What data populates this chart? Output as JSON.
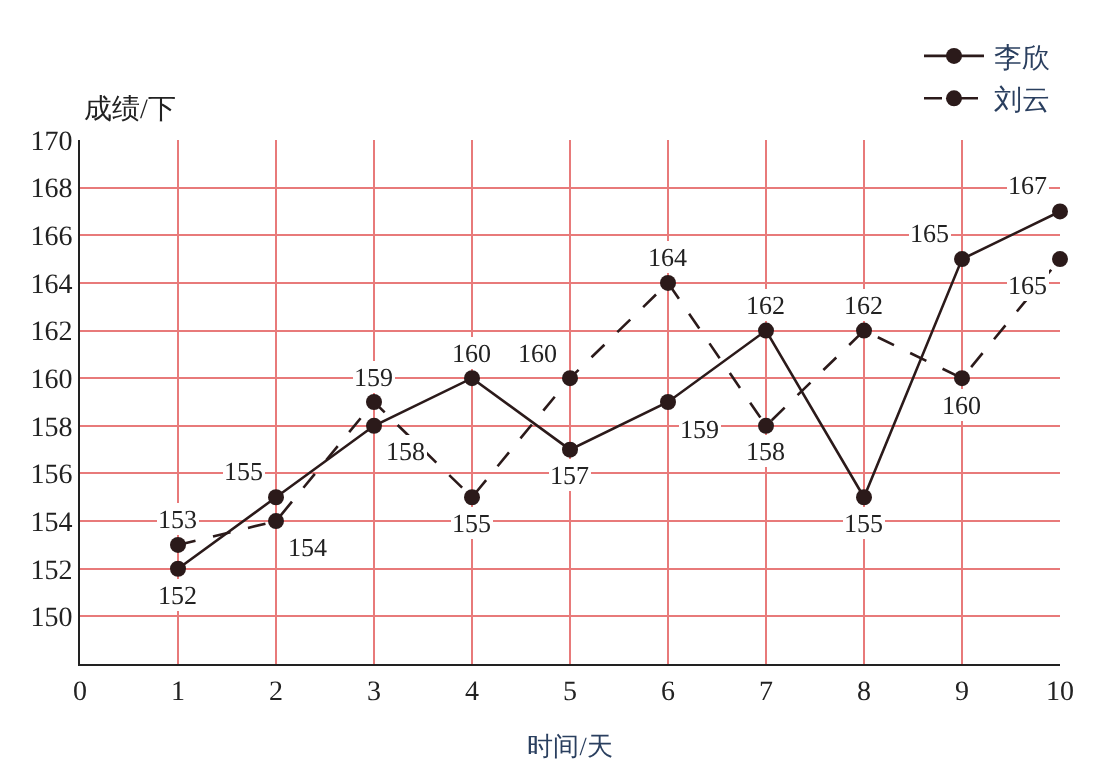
{
  "chart_data": {
    "type": "line",
    "xlabel": "时间/天",
    "ylabel": "成绩/下",
    "x": [
      1,
      2,
      3,
      4,
      5,
      6,
      7,
      8,
      9,
      10
    ],
    "series": [
      {
        "name": "李欣",
        "color": "#2b1a1a",
        "line_style": "solid",
        "values": [
          152,
          155,
          158,
          160,
          157,
          159,
          162,
          155,
          165,
          167
        ]
      },
      {
        "name": "刘云",
        "color": "#2b1a1a",
        "line_style": "dashed",
        "values": [
          153,
          154,
          159,
          155,
          160,
          164,
          158,
          162,
          160,
          165
        ]
      }
    ],
    "xlim": [
      0,
      10
    ],
    "xticks": [
      0,
      1,
      2,
      3,
      4,
      5,
      6,
      7,
      8,
      9,
      10
    ],
    "ylim": [
      148,
      170
    ],
    "yticks": [
      150,
      152,
      154,
      156,
      158,
      160,
      162,
      164,
      166,
      168,
      170
    ],
    "grid": true,
    "legend": "top right",
    "marker": "circle",
    "data_labels": true
  }
}
